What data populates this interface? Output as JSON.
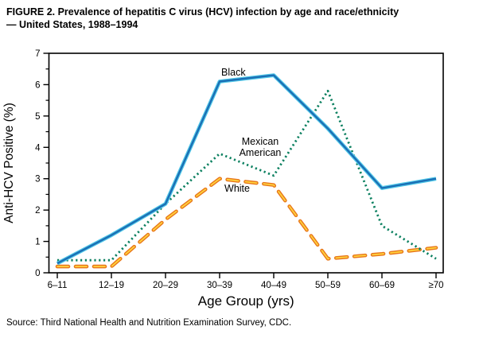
{
  "figure": {
    "title_line1": "FIGURE 2. Prevalence of hepatitis C virus (HCV) infection by age and race/ethnicity",
    "title_line2": "— United States, 1988–1994",
    "source": "Source: Third National Health and Nutrition Examination Survey, CDC."
  },
  "chart_data": {
    "type": "line",
    "title": "Prevalence of hepatitis C virus (HCV) infection by age and race/ethnicity — United States, 1988–1994",
    "categories": [
      "6–11",
      "12–19",
      "20–29",
      "30–39",
      "40–49",
      "50–59",
      "60–69",
      "≥70"
    ],
    "xlabel": "Age Group (yrs)",
    "ylabel": "Anti-HCV Positive (%)",
    "ylim": [
      0,
      7
    ],
    "y_ticks": [
      0,
      1,
      2,
      3,
      4,
      5,
      6,
      7
    ],
    "grid": false,
    "legend_position": "inline-labels",
    "series": [
      {
        "name": "White",
        "style": "dashed",
        "color": "#e8761a",
        "core_color": "#ffd23d",
        "label_lines": [
          "White"
        ],
        "values": [
          0.2,
          0.2,
          1.7,
          3.0,
          2.8,
          0.45,
          0.6,
          0.8
        ]
      },
      {
        "name": "Mexican American",
        "style": "dotted",
        "color": "#0c8060",
        "label_lines": [
          "Mexican",
          "American"
        ],
        "values": [
          0.4,
          0.4,
          2.2,
          3.8,
          3.1,
          5.8,
          1.5,
          0.45
        ]
      },
      {
        "name": "Black",
        "style": "solid",
        "color": "#1b6fb5",
        "edge_color": "#52c8e8",
        "label_lines": [
          "Black"
        ],
        "values": [
          0.3,
          1.2,
          2.2,
          6.1,
          6.3,
          4.6,
          2.7,
          3.0
        ]
      }
    ]
  }
}
